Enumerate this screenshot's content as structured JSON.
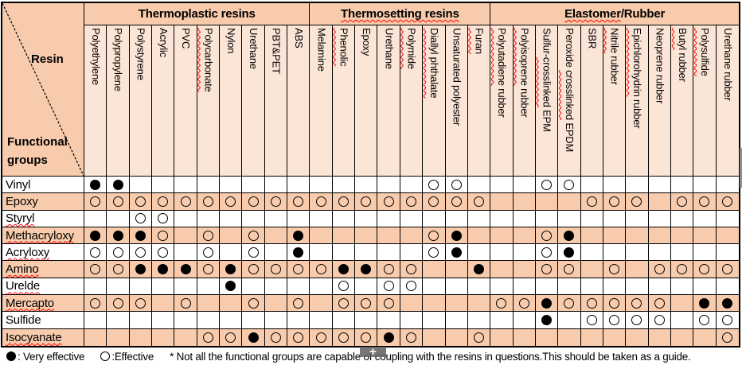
{
  "table": {
    "corner": {
      "resin": "Resin",
      "functional_groups": "Functional groups"
    },
    "groups": [
      {
        "label_segments": [
          [
            "Thermoplastic resins",
            false
          ]
        ],
        "columns": [
          {
            "segments": [
              [
                "Polyethylene",
                false
              ]
            ]
          },
          {
            "segments": [
              [
                "Polypropylene",
                false
              ]
            ]
          },
          {
            "segments": [
              [
                "Polystyrene",
                false
              ]
            ]
          },
          {
            "segments": [
              [
                "Acrylic",
                false
              ]
            ]
          },
          {
            "segments": [
              [
                "PVC",
                false
              ]
            ]
          },
          {
            "segments": [
              [
                "Polycarbonate",
                true
              ]
            ]
          },
          {
            "segments": [
              [
                "Nylon",
                false
              ]
            ]
          },
          {
            "segments": [
              [
                "Urethane",
                false
              ]
            ]
          },
          {
            "segments": [
              [
                "PBT&PET",
                false
              ]
            ]
          },
          {
            "segments": [
              [
                "ABS",
                false
              ]
            ]
          }
        ]
      },
      {
        "label_segments": [
          [
            "Thermosetting resins",
            true
          ]
        ],
        "columns": [
          {
            "segments": [
              [
                "Melamine",
                false
              ]
            ]
          },
          {
            "segments": [
              [
                "Phenolic",
                true
              ]
            ]
          },
          {
            "segments": [
              [
                "Epoxy",
                false
              ]
            ]
          },
          {
            "segments": [
              [
                "Urethane",
                false
              ]
            ]
          },
          {
            "segments": [
              [
                "Polymide",
                true
              ]
            ]
          },
          {
            "segments": [
              [
                "Diallyl phthalate",
                true
              ]
            ]
          },
          {
            "segments": [
              [
                "Unsaturated polyester",
                false
              ]
            ]
          },
          {
            "segments": [
              [
                "Furan",
                true
              ]
            ]
          }
        ]
      },
      {
        "label_segments": [
          [
            "Elastomer",
            true
          ],
          [
            "/Rubber",
            false
          ]
        ],
        "columns": [
          {
            "segments": [
              [
                "Polyutadiene",
                true
              ],
              [
                " rubber",
                false
              ]
            ]
          },
          {
            "segments": [
              [
                "Polyisoprene",
                true
              ],
              [
                " rubber",
                false
              ]
            ]
          },
          {
            "segments": [
              [
                "Sulfur-",
                false
              ],
              [
                "crosslinked",
                true
              ],
              [
                " EPM",
                false
              ]
            ]
          },
          {
            "segments": [
              [
                "Peroxide ",
                false
              ],
              [
                "crosslinked",
                true
              ],
              [
                " EPDM",
                false
              ]
            ]
          },
          {
            "segments": [
              [
                "SBR",
                false
              ]
            ]
          },
          {
            "segments": [
              [
                "Nitrile",
                true
              ],
              [
                " rubber",
                false
              ]
            ]
          },
          {
            "segments": [
              [
                "Epichlorohydrin",
                true
              ],
              [
                " rubber",
                false
              ]
            ]
          },
          {
            "segments": [
              [
                "Neoprene rubber",
                false
              ]
            ]
          },
          {
            "segments": [
              [
                "Butyl",
                true
              ],
              [
                " rubber",
                false
              ]
            ]
          },
          {
            "segments": [
              [
                "Polysulfide",
                true
              ]
            ]
          },
          {
            "segments": [
              [
                "Urethane rubber",
                false
              ]
            ]
          }
        ]
      }
    ],
    "cell_legend": {
      "F": "very effective (filled circle)",
      "O": "effective (open circle)",
      ".": "blank"
    },
    "rows": [
      {
        "label": "Vinyl",
        "wavy": false,
        "cells": [
          "FF........",
          ".....OO.",
          "..OO......."
        ]
      },
      {
        "label": "Epoxy",
        "wavy": false,
        "cells": [
          "OOOOOOOOOO",
          "OOOOOOOO",
          "....OOO.OOO"
        ]
      },
      {
        "label": "Styryl",
        "wavy": true,
        "cells": [
          "..OO......",
          "........",
          "..........."
        ]
      },
      {
        "label": "Methacryloxy",
        "wavy": true,
        "cells": [
          "FFFO.O.O.F",
          ".....OF.",
          "..OF......."
        ]
      },
      {
        "label": "Acryloxy",
        "wavy": true,
        "cells": [
          "OOOO.O.O.F",
          ".....OF.",
          "..OF......."
        ]
      },
      {
        "label": "Amino",
        "wavy": true,
        "cells": [
          "OOFFFOFOOO",
          "OFFOO..F",
          "..OO.O.OOOO"
        ]
      },
      {
        "label": "Urelde",
        "wavy": true,
        "cells": [
          "......F...",
          ".O.OO...",
          "..........."
        ]
      },
      {
        "label": "Mercapto",
        "wavy": true,
        "cells": [
          "OOO.O..O.O",
          ".OOO....",
          "OOFOOOOO.FF"
        ]
      },
      {
        "label": "Sulfide",
        "wavy": false,
        "cells": [
          "..........",
          "........",
          "..F.OOOO.OO"
        ]
      },
      {
        "label": "Isocyanate",
        "wavy": true,
        "cells": [
          ".....OOFOO",
          "OOOFO..O",
          "..........O"
        ]
      }
    ]
  },
  "legend": {
    "very_effective": {
      "symbol": "filled-circle",
      "label": ": Very effective"
    },
    "effective": {
      "symbol": "open-circle",
      "label": ":Effective"
    },
    "note": "* Not all the functional groups are capable of coupling with the resins in questions.This should be taken as a guide."
  },
  "overlay": {
    "plus_symbol": "+"
  },
  "colors": {
    "group_header_bg": "#F8CBAD",
    "column_header_bg": "#FBE5D6",
    "alt_row_bg": "#F8CBAD",
    "border": "#000000",
    "spellcheck_underline": "#FF0000",
    "cursor_bg": "#646464"
  }
}
